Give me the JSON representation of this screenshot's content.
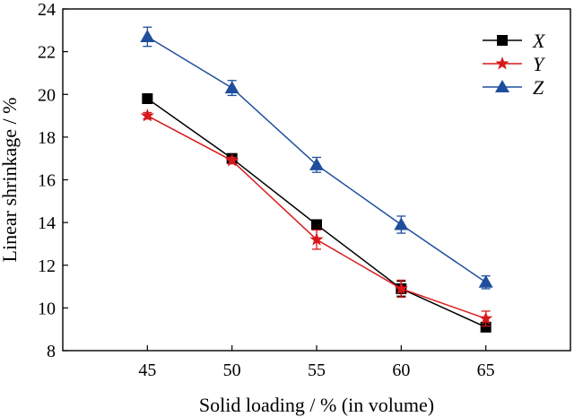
{
  "chart_data": {
    "type": "line",
    "title": "",
    "xlabel": "Solid loading / % (in volume)",
    "ylabel": "Linear shrinkage / %",
    "x": [
      45,
      50,
      55,
      60,
      65
    ],
    "xlim": [
      40,
      70
    ],
    "ylim": [
      8,
      24
    ],
    "xticks": [
      45,
      50,
      55,
      60,
      65
    ],
    "yticks": [
      8,
      10,
      12,
      14,
      16,
      18,
      20,
      22,
      24
    ],
    "grid": false,
    "legend_position": "top-right",
    "series": [
      {
        "name": "X",
        "color": "#000000",
        "marker": "square",
        "values": [
          19.8,
          17.0,
          13.9,
          10.9,
          9.1
        ],
        "errors": [
          0.1,
          0.1,
          0.15,
          0.35,
          0.2
        ]
      },
      {
        "name": "Y",
        "color": "#d7191c",
        "marker": "star",
        "values": [
          19.0,
          16.9,
          13.2,
          10.9,
          9.5
        ],
        "errors": [
          0.15,
          0.15,
          0.45,
          0.4,
          0.35
        ]
      },
      {
        "name": "Z",
        "color": "#1f4e9c",
        "marker": "triangle",
        "values": [
          22.7,
          20.3,
          16.7,
          13.9,
          11.2
        ],
        "errors": [
          0.45,
          0.35,
          0.35,
          0.4,
          0.3
        ]
      }
    ]
  }
}
